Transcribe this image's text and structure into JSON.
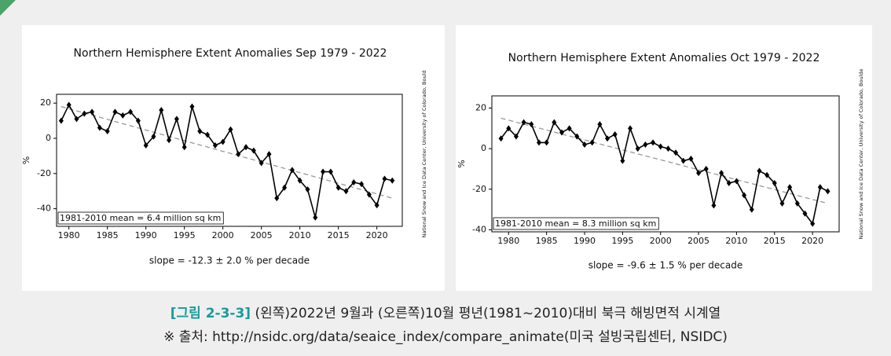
{
  "chart_data": [
    {
      "type": "line",
      "title": "Northern Hemisphere Extent Anomalies Sep 1979 - 2022",
      "ylabel": "%",
      "annotation": "1981-2010 mean = 6.4 million sq km",
      "slope": "slope = -12.3 ± 2.0 % per decade",
      "source": "National Snow and Ice Data Center, University of Colorado, Bould",
      "x": [
        1979,
        1980,
        1981,
        1982,
        1983,
        1984,
        1985,
        1986,
        1987,
        1988,
        1989,
        1990,
        1991,
        1992,
        1993,
        1994,
        1995,
        1996,
        1997,
        1998,
        1999,
        2000,
        2001,
        2002,
        2003,
        2004,
        2005,
        2006,
        2007,
        2008,
        2009,
        2010,
        2011,
        2012,
        2013,
        2014,
        2015,
        2016,
        2017,
        2018,
        2019,
        2020,
        2021,
        2022
      ],
      "series": [
        {
          "name": "Sep",
          "color": "#000000",
          "values": [
            10,
            19,
            11,
            14,
            15,
            6,
            4,
            15,
            13,
            15,
            10,
            -4,
            1,
            16,
            -1,
            11,
            -5,
            18,
            4,
            2,
            -4,
            -2,
            5,
            -9,
            -5,
            -7,
            -14,
            -9,
            -34,
            -28,
            -18,
            -24,
            -29,
            -45,
            -19,
            -19,
            -28,
            -30,
            -25,
            -26,
            -32,
            -38,
            -23,
            -24
          ]
        }
      ],
      "trend": {
        "x": [
          1979,
          2022
        ],
        "values": [
          18,
          -34
        ],
        "color": "#999999"
      },
      "xlim": [
        1978.4,
        2023.3
      ],
      "ylim": [
        -50,
        25
      ],
      "xticks": [
        1980,
        1985,
        1990,
        1995,
        2000,
        2005,
        2010,
        2015,
        2020
      ],
      "yticks": [
        -40,
        -20,
        0,
        20
      ]
    },
    {
      "type": "line",
      "title": "Northern Hemisphere Extent Anomalies Oct 1979 - 2022",
      "ylabel": "%",
      "annotation": "1981-2010 mean = 8.3 million sq km",
      "slope": "slope = -9.6 ± 1.5 % per decade",
      "source": "National Snow and Ice Data Center, University of Colorado, Boulde",
      "x": [
        1979,
        1980,
        1981,
        1982,
        1983,
        1984,
        1985,
        1986,
        1987,
        1988,
        1989,
        1990,
        1991,
        1992,
        1993,
        1994,
        1995,
        1996,
        1997,
        1998,
        1999,
        2000,
        2001,
        2002,
        2003,
        2004,
        2005,
        2006,
        2007,
        2008,
        2009,
        2010,
        2011,
        2012,
        2013,
        2014,
        2015,
        2016,
        2017,
        2018,
        2019,
        2020,
        2021,
        2022
      ],
      "series": [
        {
          "name": "Oct",
          "color": "#000000",
          "values": [
            5,
            10,
            6,
            13,
            12,
            3,
            3,
            13,
            8,
            10,
            6,
            2,
            3,
            12,
            5,
            7,
            -6,
            10,
            0,
            2,
            3,
            1,
            0,
            -2,
            -6,
            -5,
            -12,
            -10,
            -28,
            -12,
            -17,
            -16,
            -23,
            -30,
            -11,
            -13,
            -17,
            -27,
            -19,
            -27,
            -32,
            -37,
            -19,
            -21
          ]
        }
      ],
      "trend": {
        "x": [
          1979,
          2022
        ],
        "values": [
          15,
          -27
        ],
        "color": "#999999"
      },
      "xlim": [
        1977.8,
        2023.5
      ],
      "ylim": [
        -41,
        26
      ],
      "xticks": [
        1980,
        1985,
        1990,
        1995,
        2000,
        2005,
        2010,
        2015,
        2020
      ],
      "yticks": [
        -40,
        -20,
        0,
        20
      ]
    }
  ],
  "caption": {
    "label": "[그림 2-3-3]",
    "text": " (왼쪽)2022년 9월과 (오른쪽)10월 평년(1981~2010)대비 북극 해빙면적 시계열",
    "source": "※ 출처: http://nsidc.org/data/seaice_index/compare_animate(미국 설빙국립센터, NSIDC)"
  }
}
